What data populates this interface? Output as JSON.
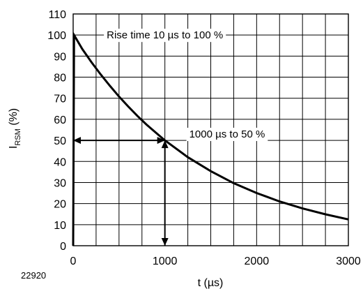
{
  "figure_number": "22920",
  "chart_data": {
    "type": "line",
    "xlabel": "t (µs)",
    "ylabel_main": "I",
    "ylabel_sub": "RSM",
    "ylabel_unit": " (%)",
    "xlim": [
      0,
      3000
    ],
    "ylim": [
      0,
      110
    ],
    "x_ticks": [
      0,
      1000,
      2000,
      3000
    ],
    "y_ticks": [
      0,
      10,
      20,
      30,
      40,
      50,
      60,
      70,
      80,
      90,
      100,
      110
    ],
    "grid": true,
    "x_minor_step": 250,
    "y_minor_step": 10,
    "series": [
      {
        "x": [
          0,
          10,
          100,
          200,
          300,
          400,
          500,
          600,
          700,
          800,
          900,
          1000,
          1250,
          1500,
          1750,
          2000,
          2250,
          2500,
          2750,
          3000
        ],
        "y": [
          0,
          100,
          93.3,
          87.1,
          81.3,
          75.9,
          70.8,
          66.1,
          61.6,
          57.5,
          53.7,
          50,
          42,
          35.4,
          29.7,
          25,
          21,
          17.7,
          14.9,
          12.5
        ]
      }
    ],
    "annotations": [
      {
        "text": "Rise time 10 µs to 100 %",
        "x": 1000,
        "y": 100
      },
      {
        "text": "1000 µs to 50 %",
        "x": 1250,
        "y": 53
      }
    ],
    "markers": [
      {
        "kind": "horizontal-double-arrow",
        "from": [
          0,
          50
        ],
        "to": [
          1000,
          50
        ]
      },
      {
        "kind": "vertical-double-arrow",
        "from": [
          1000,
          50
        ],
        "to": [
          1000,
          0
        ]
      }
    ]
  }
}
